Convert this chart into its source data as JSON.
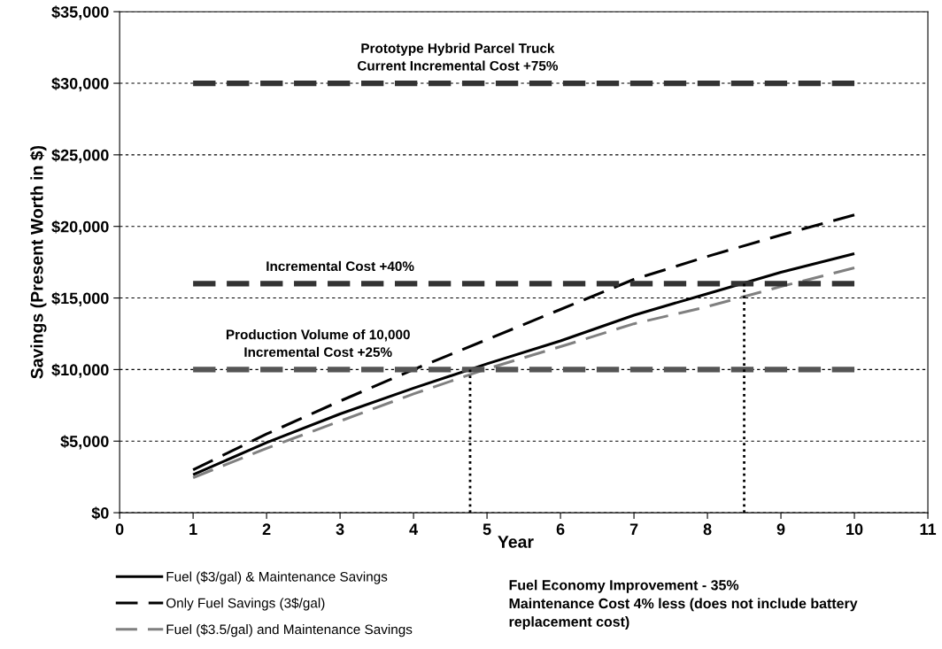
{
  "chart_data": {
    "type": "line",
    "xlabel": "Year",
    "ylabel": "Savings (Present Worth in $)",
    "xlim": [
      0,
      11
    ],
    "xticks": [
      0,
      1,
      2,
      3,
      4,
      5,
      6,
      7,
      8,
      9,
      10,
      11
    ],
    "ylim": [
      0,
      35000
    ],
    "yticks": [
      {
        "value": 0,
        "label": "$0"
      },
      {
        "value": 5000,
        "label": "$5,000"
      },
      {
        "value": 10000,
        "label": "$10,000"
      },
      {
        "value": 15000,
        "label": "$15,000"
      },
      {
        "value": 20000,
        "label": "$20,000"
      },
      {
        "value": 25000,
        "label": "$25,000"
      },
      {
        "value": 30000,
        "label": "$30,000"
      },
      {
        "value": 35000,
        "label": "$35,000"
      }
    ],
    "grid": "y",
    "legend": "bottom left",
    "marker": "none",
    "series": [
      {
        "name": "Fuel ($3/gal) & Maintenance Savings",
        "color": "#000000",
        "line_style": "solid",
        "x": [
          1,
          2,
          3,
          4,
          5,
          6,
          7,
          8,
          9,
          10
        ],
        "values": [
          2650,
          4900,
          6900,
          8700,
          10400,
          12000,
          13800,
          15300,
          16800,
          18100
        ]
      },
      {
        "name": "Only Fuel Savings (3$/gal)",
        "color": "#000000",
        "line_style": "dashed",
        "x": [
          1,
          2,
          3,
          4,
          5,
          6,
          7,
          8,
          9,
          10
        ],
        "values": [
          3000,
          5500,
          7800,
          10000,
          12100,
          14200,
          16300,
          17900,
          19400,
          20800
        ]
      },
      {
        "name": "Fuel ($3.5/gal) and Maintenance Savings",
        "color": "#808080",
        "line_style": "dashed",
        "x": [
          1,
          2,
          3,
          4,
          5,
          6,
          7,
          8,
          9,
          10
        ],
        "values": [
          2450,
          4500,
          6400,
          8300,
          10050,
          11600,
          13200,
          14400,
          15800,
          17100
        ]
      },
      {
        "color": "#333333",
        "line_style": "dashed",
        "x": [
          1,
          10
        ],
        "values": [
          30000,
          30000
        ]
      },
      {
        "color": "#333333",
        "line_style": "dashed",
        "x": [
          1,
          10
        ],
        "values": [
          16000,
          16000
        ]
      },
      {
        "color": "#555555",
        "line_style": "dashed",
        "x": [
          1,
          10
        ],
        "values": [
          10000,
          10000
        ]
      },
      {
        "color": "#000000",
        "line_style": "dotted",
        "x": [
          4.77,
          4.77
        ],
        "values": [
          0,
          10000
        ]
      },
      {
        "color": "#000000",
        "line_style": "dotted",
        "x": [
          8.5,
          8.5
        ],
        "values": [
          0,
          16000
        ]
      }
    ],
    "annotations": [
      {
        "text": "Prototype Hybrid Parcel Truck\nCurrent Incremental Cost +75%",
        "x": 4.6,
        "y": 30000
      },
      {
        "text": "Incremental Cost +40%",
        "x": 3.0,
        "y": 16000
      },
      {
        "text": "Production Volume of 10,000\nIncremental Cost +25%",
        "x": 2.7,
        "y": 10000
      },
      "Fuel Economy Improvement - 35%\nMaintenance Cost 4% less (does not include battery\nreplacement cost)"
    ]
  }
}
